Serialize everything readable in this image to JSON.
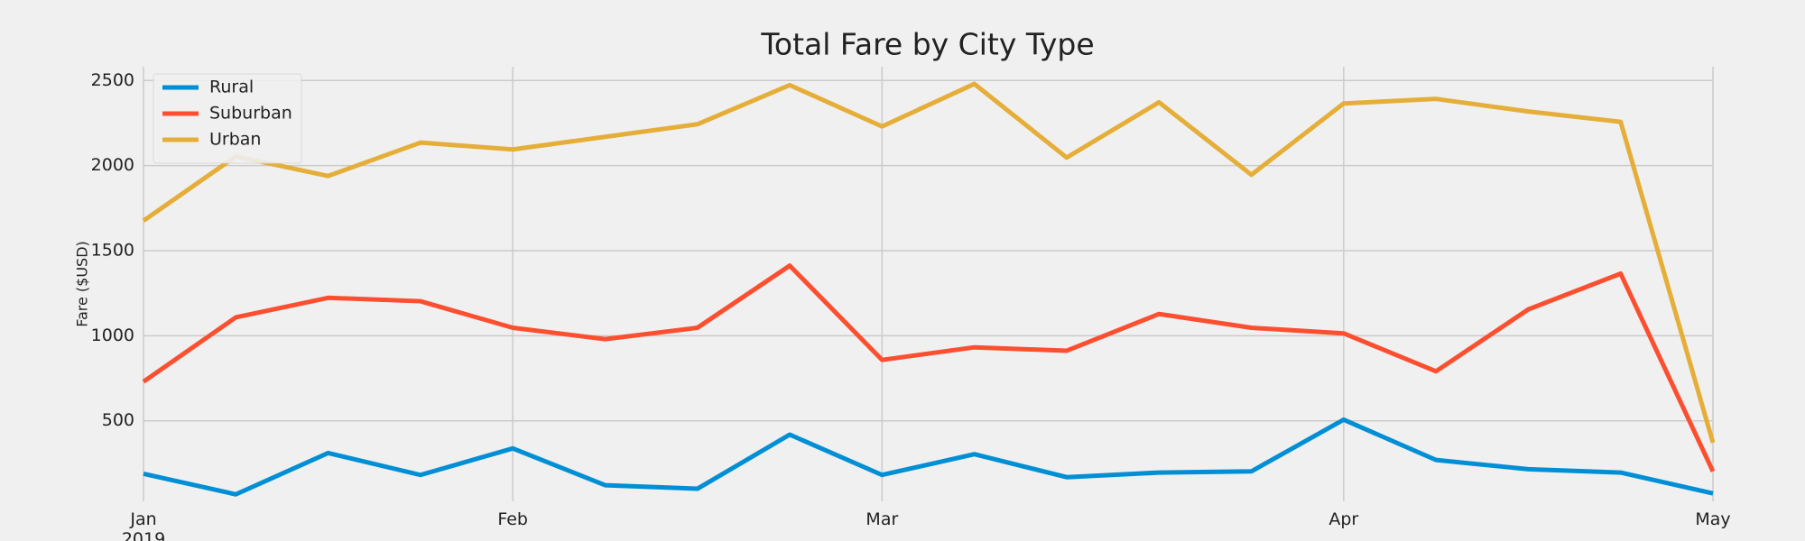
{
  "chart_data": {
    "type": "line",
    "title": "Total Fare by City Type",
    "y_label": "Fare ($USD)",
    "categories": [
      "Jan\n2019",
      null,
      null,
      null,
      "Feb",
      null,
      null,
      null,
      "Mar",
      null,
      null,
      null,
      null,
      "Apr",
      null,
      null,
      null,
      "May"
    ],
    "series": [
      {
        "name": "Rural",
        "color": "#008fd5",
        "values": [
          189,
          68,
          311,
          182,
          338,
          122,
          101,
          419,
          182,
          304,
          169,
          196,
          203,
          507,
          270,
          216,
          196,
          74
        ]
      },
      {
        "name": "Suburban",
        "color": "#fc4f30",
        "values": [
          730,
          1108,
          1223,
          1203,
          1047,
          980,
          1047,
          1412,
          858,
          932,
          912,
          1128,
          1047,
          1014,
          791,
          1155,
          1365,
          203
        ]
      },
      {
        "name": "Urban",
        "color": "#e5ae38",
        "values": [
          1676,
          2054,
          1939,
          2135,
          2095,
          2169,
          2243,
          2473,
          2230,
          2480,
          2047,
          2372,
          1946,
          2365,
          2392,
          2318,
          2257,
          372
        ]
      }
    ],
    "ylim": [
      27,
      2581
    ],
    "yticks": [
      500,
      1000,
      1500,
      2000,
      2500
    ],
    "grid": true,
    "legend": "upper left"
  }
}
